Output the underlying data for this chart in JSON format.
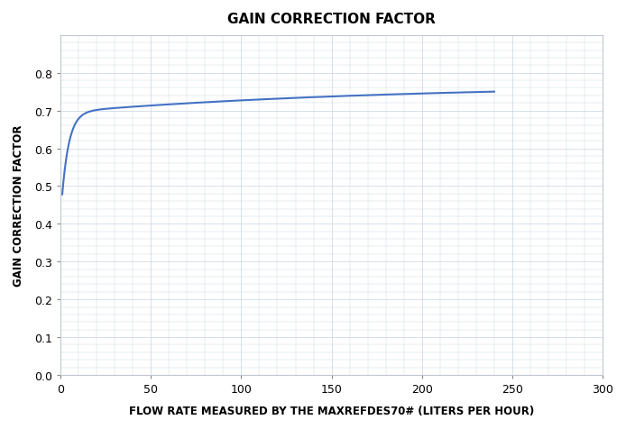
{
  "title": "GAIN CORRECTION FACTOR",
  "xlabel": "FLOW RATE MEASURED BY THE MAXREFDES70# (LITERS PER HOUR)",
  "ylabel": "GAIN CORRECTION FACTOR",
  "xlim": [
    0,
    300
  ],
  "ylim": [
    0,
    0.9
  ],
  "xticks": [
    0,
    50,
    100,
    150,
    200,
    250,
    300
  ],
  "yticks": [
    0,
    0.1,
    0.2,
    0.3,
    0.4,
    0.5,
    0.6,
    0.7,
    0.8
  ],
  "curve_color": "#4472C4",
  "curve_linewidth": 1.5,
  "background_color": "#ffffff",
  "grid_color": "#c8d4e0",
  "title_fontsize": 11,
  "label_fontsize": 8.5,
  "tick_fontsize": 9,
  "curve_L": 0.8,
  "curve_k": 0.15,
  "curve_x0": 0.5
}
